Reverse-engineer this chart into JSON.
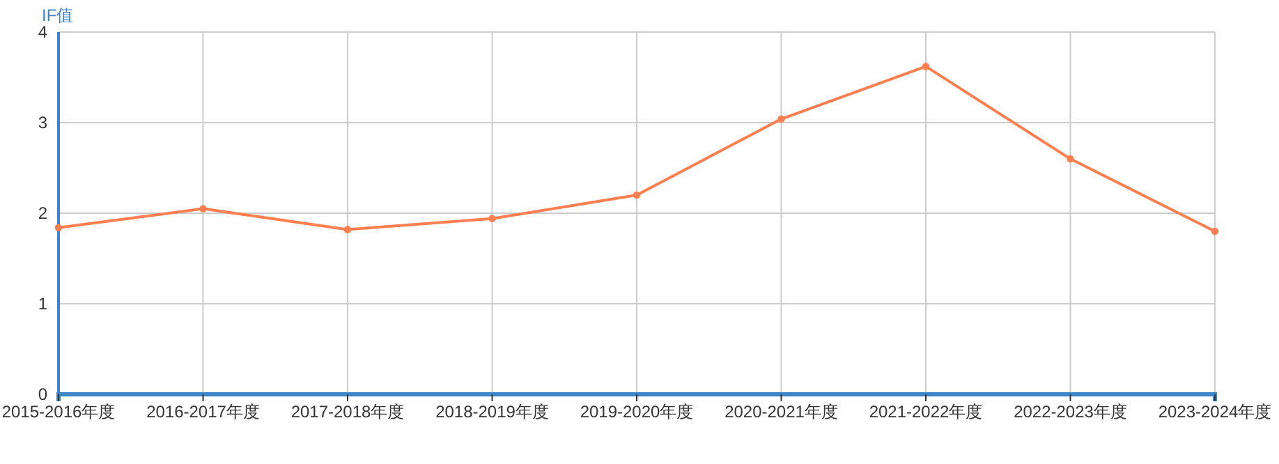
{
  "chart_data": {
    "type": "line",
    "ylabel": "IF值",
    "categories": [
      "2015-2016年度",
      "2016-2017年度",
      "2017-2018年度",
      "2018-2019年度",
      "2019-2020年度",
      "2020-2021年度",
      "2021-2022年度",
      "2022-2023年度",
      "2023-2024年度"
    ],
    "series": [
      {
        "color": "#ff7f50",
        "values": [
          1.84,
          2.05,
          1.82,
          1.94,
          2.2,
          3.04,
          3.62,
          2.6,
          1.8
        ]
      }
    ],
    "ylim": [
      0,
      4
    ],
    "yticks": [
      0,
      1,
      2,
      3,
      4
    ],
    "grid": true,
    "marker": "circle",
    "line_style": "solid"
  }
}
